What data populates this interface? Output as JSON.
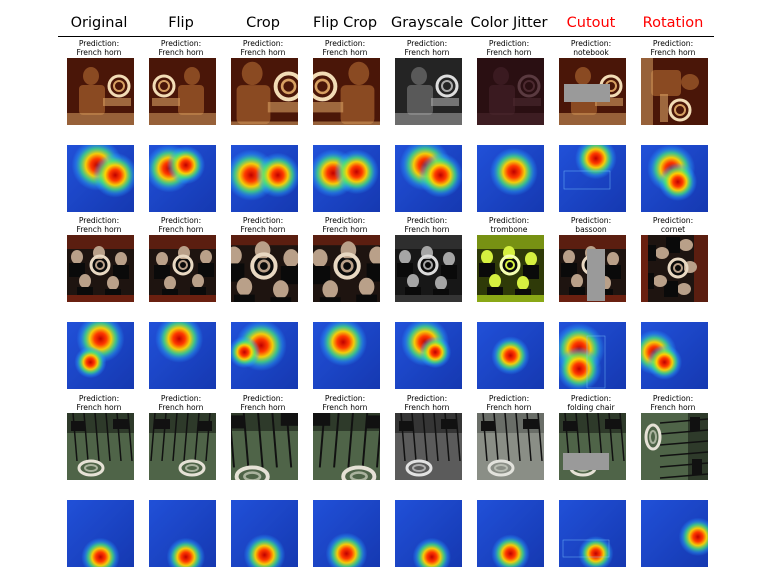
{
  "columns": [
    {
      "label": "Original",
      "color": "#000000"
    },
    {
      "label": "Flip",
      "color": "#000000"
    },
    {
      "label": "Crop",
      "color": "#000000"
    },
    {
      "label": "Flip Crop",
      "color": "#000000"
    },
    {
      "label": "Grayscale",
      "color": "#000000"
    },
    {
      "label": "Color Jitter",
      "color": "#000000"
    },
    {
      "label": "Cutout",
      "color": "#ff0000"
    },
    {
      "label": "Rotation",
      "color": "#ff0000"
    }
  ],
  "prediction_prefix": "Prediction:",
  "examples": [
    {
      "scene": "portrait-with-horn",
      "predictions": [
        "French horn",
        "French horn",
        "French horn",
        "French horn",
        "French horn",
        "French horn",
        "notebook",
        "French horn"
      ]
    },
    {
      "scene": "orchestra-horn-section",
      "predictions": [
        "French horn",
        "French horn",
        "French horn",
        "French horn",
        "French horn",
        "trombone",
        "bassoon",
        "cornet"
      ]
    },
    {
      "scene": "horn-on-grass",
      "predictions": [
        "French horn",
        "French horn",
        "French horn",
        "French horn",
        "French horn",
        "French horn",
        "folding chair",
        "French horn"
      ]
    }
  ]
}
